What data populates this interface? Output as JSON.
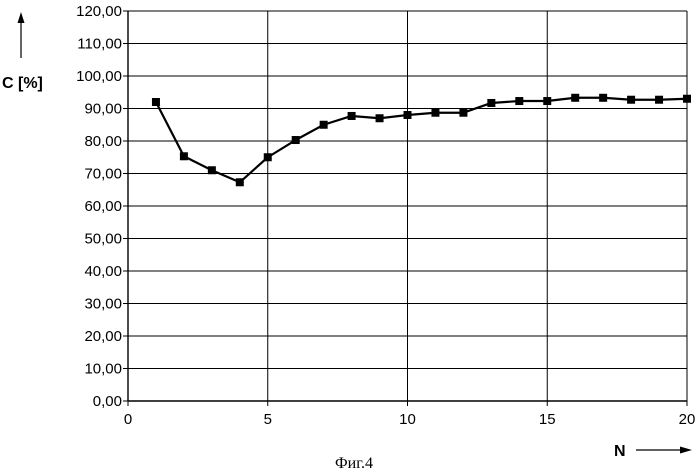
{
  "chart_data": {
    "type": "line",
    "xlabel": "N",
    "ylabel": "C [%]",
    "caption": "Фиг.4",
    "xlim": [
      0,
      20
    ],
    "ylim": [
      0,
      120
    ],
    "x_ticks": [
      0,
      5,
      10,
      15,
      20
    ],
    "y_ticks": [
      0,
      10,
      20,
      30,
      40,
      50,
      60,
      70,
      80,
      90,
      100,
      110,
      120
    ],
    "x_tick_labels": [
      "0",
      "5",
      "10",
      "15",
      "20"
    ],
    "y_tick_labels": [
      "0,00",
      "10,00",
      "20,00",
      "30,00",
      "40,00",
      "50,00",
      "60,00",
      "70,00",
      "80,00",
      "90,00",
      "100,00",
      "110,00",
      "120,00"
    ],
    "grid": true,
    "marker": "square",
    "series": [
      {
        "x": [
          1,
          2,
          3,
          4,
          5,
          6,
          7,
          8,
          9,
          10,
          11,
          12,
          13,
          14,
          15,
          16,
          17,
          18,
          19,
          20
        ],
        "values": [
          92,
          75.3,
          71,
          67.3,
          75,
          80.3,
          85,
          87.7,
          87,
          88,
          88.7,
          88.7,
          91.7,
          92.3,
          92.3,
          93.3,
          93.3,
          92.7,
          92.7,
          93
        ],
        "color": "#000000"
      }
    ]
  }
}
